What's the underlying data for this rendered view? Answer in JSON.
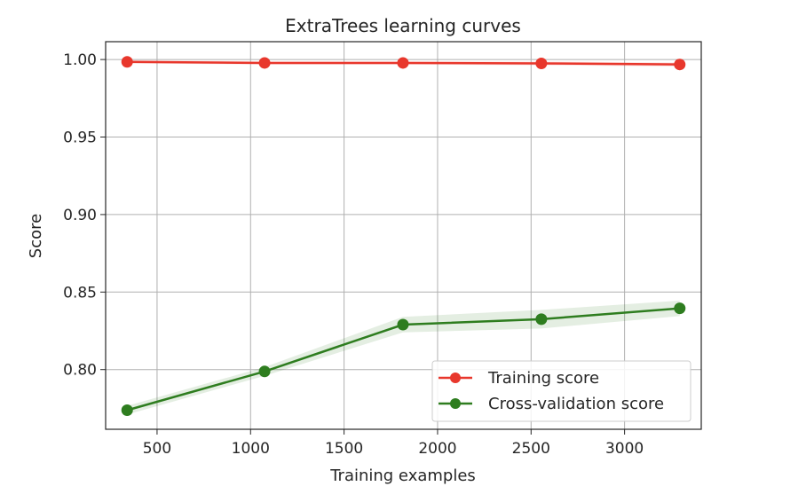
{
  "chart_data": {
    "type": "line",
    "title": "ExtraTrees learning curves",
    "xlabel": "Training examples",
    "ylabel": "Score",
    "xlim": [
      225,
      3410
    ],
    "ylim": [
      0.7615,
      1.0115
    ],
    "xticks": [
      500,
      1000,
      1500,
      2000,
      2500,
      3000
    ],
    "xtick_labels": [
      "500",
      "1000",
      "1500",
      "2000",
      "2500",
      "3000"
    ],
    "yticks": [
      0.8,
      0.85,
      0.9,
      0.95,
      1.0
    ],
    "ytick_labels": [
      "0.80",
      "0.85",
      "0.90",
      "0.95",
      "1.00"
    ],
    "grid": true,
    "legend_position": "lower-right",
    "x": [
      340,
      1075,
      1815,
      2555,
      3295
    ],
    "series": [
      {
        "name": "Training score",
        "color": "#e8372c",
        "marker": "circle",
        "values": [
          0.9985,
          0.9978,
          0.9978,
          0.9975,
          0.9968
        ],
        "band_lower": [
          0.9975,
          0.9968,
          0.9968,
          0.9963,
          0.9955
        ],
        "band_upper": [
          0.9995,
          0.9988,
          0.9988,
          0.9987,
          0.9981
        ]
      },
      {
        "name": "Cross-validation score",
        "color": "#2e7d1f",
        "marker": "circle",
        "values": [
          0.7738,
          0.7988,
          0.829,
          0.8325,
          0.8395
        ],
        "band_lower": [
          0.771,
          0.796,
          0.824,
          0.8265,
          0.8345
        ],
        "band_upper": [
          0.7766,
          0.8016,
          0.834,
          0.8385,
          0.8445
        ]
      }
    ]
  }
}
